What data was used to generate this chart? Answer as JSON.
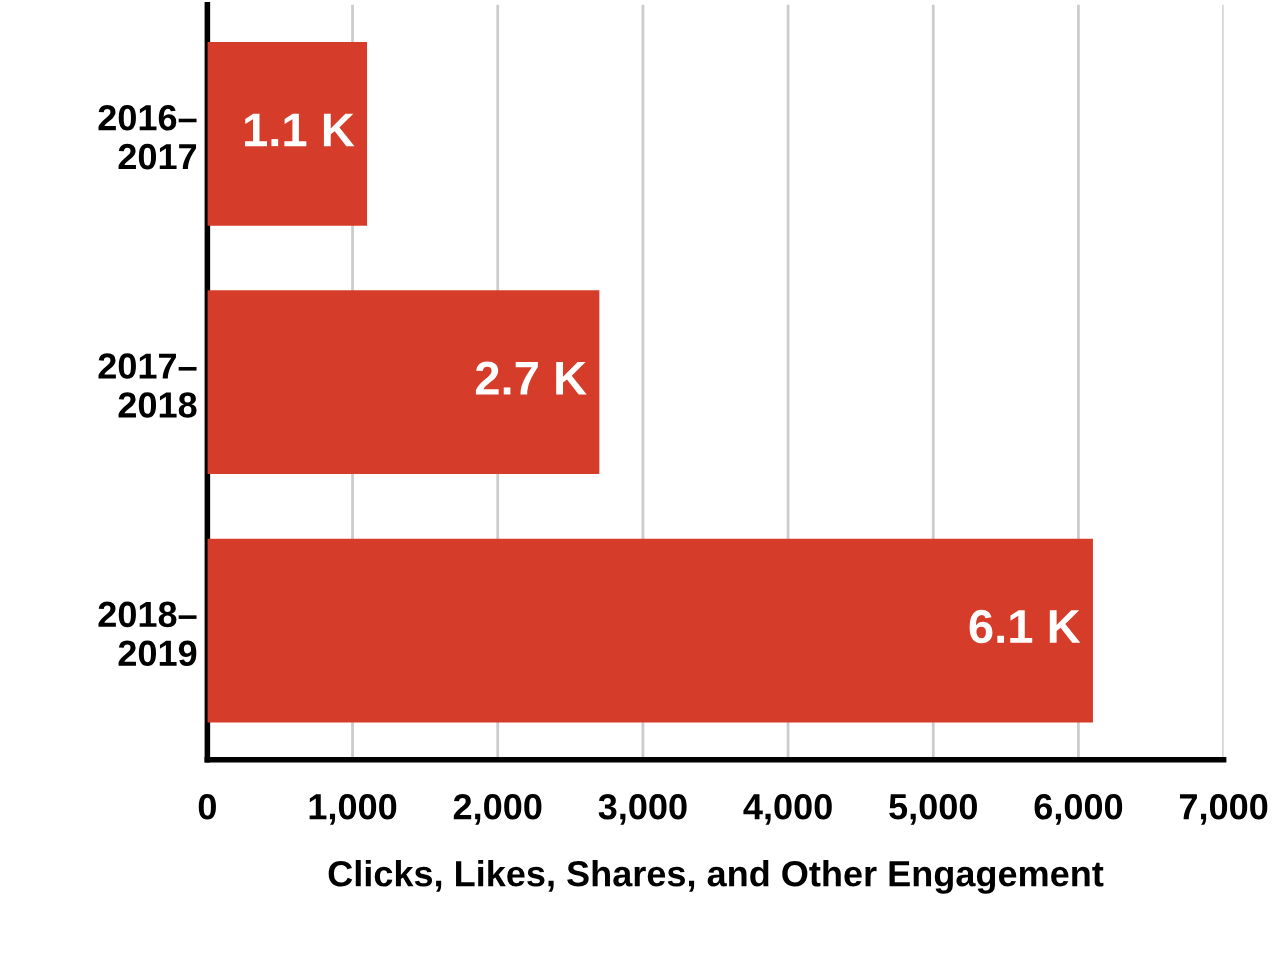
{
  "chart_data": {
    "type": "bar",
    "orientation": "horizontal",
    "xlabel": "Clicks, Likes, Shares, and Other Engagement",
    "categories": [
      "2016–\n2017",
      "2017–\n2018",
      "2018–\n2019"
    ],
    "values": [
      1100,
      2700,
      6100
    ],
    "value_labels": [
      "1.1 K",
      "2.7 K",
      "6.1 K"
    ],
    "color": "#d63c2a",
    "xlim": [
      0,
      7000
    ],
    "xticks": [
      0,
      {
        "value": 1000,
        "label": "1,000"
      },
      {
        "value": 2000,
        "label": "2,000"
      },
      {
        "value": 3000,
        "label": "3,000"
      },
      {
        "value": 4000,
        "label": "4,000"
      },
      {
        "value": 5000,
        "label": "5,000"
      },
      {
        "value": 6000,
        "label": "6,000"
      },
      {
        "value": 7000,
        "label": "7,000"
      }
    ],
    "grid": "x",
    "legend": false
  }
}
